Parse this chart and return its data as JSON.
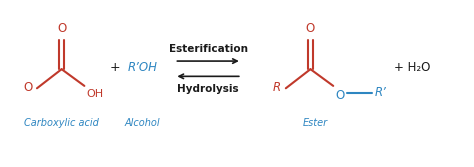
{
  "bg_color": "#ffffff",
  "red": "#c0392b",
  "blue": "#2e86c1",
  "black": "#1a1a1a",
  "label_carboxylic": "Carboxylic acid",
  "label_alcohol": "Alcohol",
  "label_ester": "Ester",
  "label_esterification": "Esterification",
  "label_hydrolysis": "Hydrolysis",
  "label_plus1": "+",
  "label_water": "+ H₂O",
  "label_roh": "R’OH",
  "label_oh": "OH",
  "label_r": "R",
  "label_rprime": "R’",
  "label_o": "O",
  "figsize": [
    4.74,
    1.67
  ],
  "dpi": 100,
  "xlim": [
    0,
    10
  ],
  "ylim": [
    0,
    3.5
  ]
}
